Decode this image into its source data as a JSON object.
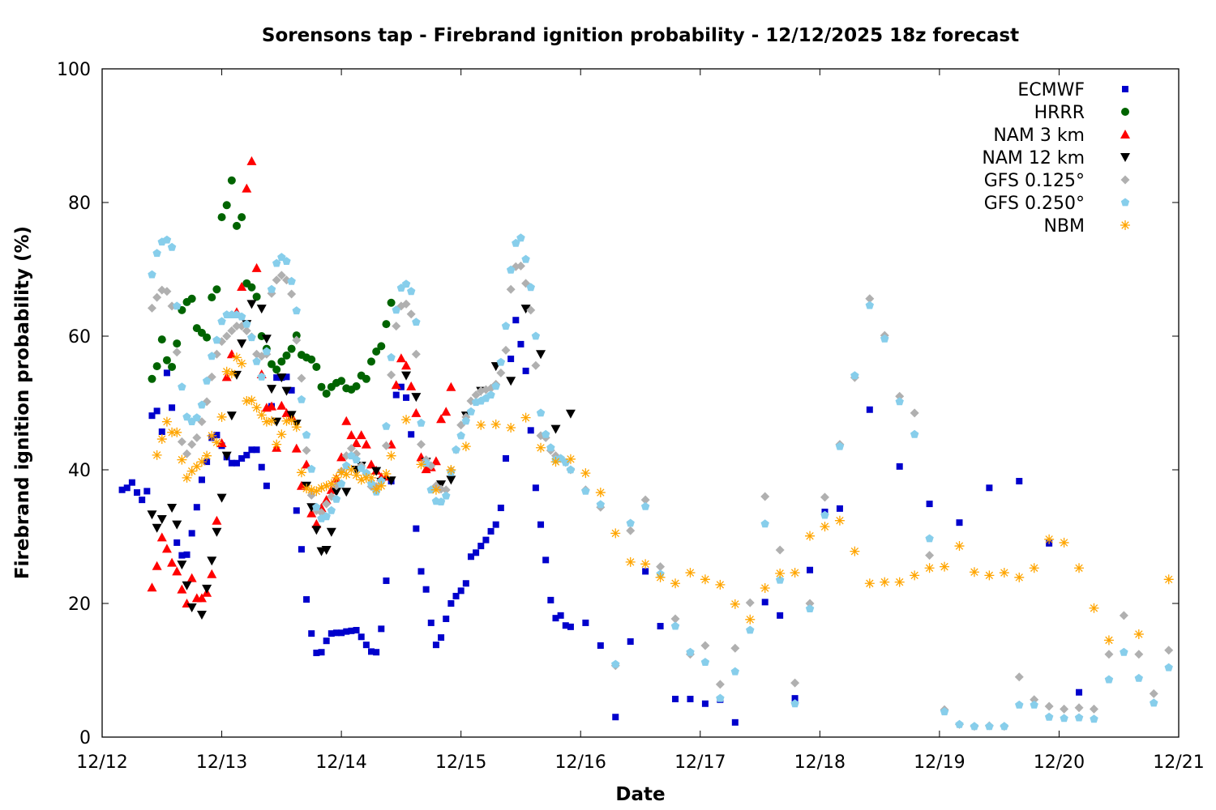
{
  "chart_data": {
    "type": "scatter",
    "title": "Sorensons tap - Firebrand ignition probability - 12/12/2025 18z forecast",
    "xlabel": "Date",
    "ylabel": "Firebrand ignition probability (%)",
    "x_units": "hours since 12/12 00z",
    "xlim": [
      0,
      216
    ],
    "ylim": [
      0,
      100
    ],
    "xticks": [
      {
        "value": 0,
        "label": "12/12"
      },
      {
        "value": 24,
        "label": "12/13"
      },
      {
        "value": 48,
        "label": "12/14"
      },
      {
        "value": 72,
        "label": "12/15"
      },
      {
        "value": 96,
        "label": "12/16"
      },
      {
        "value": 120,
        "label": "12/17"
      },
      {
        "value": 144,
        "label": "12/18"
      },
      {
        "value": 168,
        "label": "12/19"
      },
      {
        "value": 192,
        "label": "12/20"
      },
      {
        "value": 216,
        "label": "12/21"
      }
    ],
    "yticks": [
      {
        "value": 0,
        "label": "0"
      },
      {
        "value": 20,
        "label": "20"
      },
      {
        "value": 40,
        "label": "40"
      },
      {
        "value": 60,
        "label": "60"
      },
      {
        "value": 80,
        "label": "80"
      },
      {
        "value": 100,
        "label": "100"
      }
    ],
    "grid": false,
    "legend_position": "top-right",
    "series": [
      {
        "name": "ECMWF",
        "color": "#0000cc",
        "marker": "square",
        "segments": [
          {
            "start": 4,
            "step": 1,
            "values": [
              37.0,
              37.3,
              38.1,
              36.6,
              35.5,
              36.8,
              48.1,
              48.8,
              45.7,
              54.5,
              49.3,
              29.1,
              27.2,
              27.3,
              30.5,
              34.4,
              38.5,
              41.2,
              44.8,
              45.2,
              43.6,
              41.9,
              41.0,
              41.0,
              41.7,
              42.2,
              43.0,
              43.0,
              40.4,
              37.6,
              49.5,
              53.8,
              53.8,
              53.9,
              51.9,
              33.9,
              28.1,
              20.6,
              15.5,
              12.6,
              12.7,
              14.4,
              15.5,
              15.6,
              15.6,
              15.8,
              15.9,
              16.0,
              15.0,
              13.8,
              12.8,
              12.7,
              16.2,
              23.4,
              38.3,
              51.2,
              52.4,
              50.8,
              45.3,
              31.2,
              24.8,
              22.1,
              17.1,
              13.8,
              14.9,
              17.7,
              20.0,
              21.1,
              21.9,
              23.0,
              27.0,
              27.6,
              28.6,
              29.5,
              30.8,
              31.8,
              34.3,
              41.7,
              56.6,
              62.4,
              58.8,
              54.8,
              45.9,
              37.3,
              31.8,
              26.5,
              20.5,
              17.8,
              18.2,
              16.7,
              16.5
            ]
          },
          {
            "start": 97,
            "step": 3,
            "values": [
              17.1,
              13.7,
              3.0,
              14.3,
              24.8,
              16.6,
              5.7,
              5.7,
              5.0,
              5.6,
              2.2
            ]
          },
          {
            "start": 133,
            "step": 3,
            "values": [
              20.2,
              18.2,
              5.8,
              25.0,
              33.7,
              34.2
            ]
          },
          {
            "start": 154,
            "step": 6,
            "values": [
              49.0,
              40.5,
              34.9,
              32.1,
              37.3,
              38.3,
              29.0,
              6.7
            ]
          }
        ]
      },
      {
        "name": "HRRR",
        "color": "#006400",
        "marker": "circle",
        "segments": [
          {
            "start": 10,
            "step": 1,
            "values": [
              53.6,
              55.5,
              59.5,
              56.4,
              55.4,
              58.9,
              63.9,
              65.1,
              65.6,
              61.2,
              60.5,
              59.8,
              65.8,
              67.0,
              77.8,
              79.6,
              83.3,
              76.5,
              77.8,
              67.9,
              67.3,
              65.9,
              60.0,
              58.1,
              55.8,
              55.0,
              56.2,
              57.1,
              58.1,
              60.1,
              57.2,
              56.8,
              56.5,
              55.4,
              52.4,
              51.4,
              52.4,
              53.0,
              53.3,
              52.2,
              52.0,
              52.5,
              54.1,
              53.6,
              56.2,
              57.7,
              58.5,
              61.8,
              65.0
            ]
          }
        ]
      },
      {
        "name": "NAM 3 km",
        "color": "#ff0000",
        "marker": "triangle-up",
        "segments": [
          {
            "start": 10,
            "step": 1,
            "values": [
              22.4,
              25.6,
              29.9,
              28.2,
              26.1,
              24.8,
              22.1,
              20.0,
              23.8,
              20.8,
              20.8,
              21.6,
              24.4,
              32.4,
              44.0,
              53.9,
              57.3,
              63.6,
              67.4,
              82.1,
              86.2,
              70.2,
              54.3,
              49.3,
              49.5,
              43.3,
              49.6,
              48.5,
              48.0,
              43.2,
              37.6,
              40.8,
              33.5,
              31.9,
              34.3,
              35.5,
              37.0,
              38.7,
              41.9,
              47.3,
              45.2,
              44.0,
              45.2,
              43.8,
              40.8,
              39.9,
              38.9,
              39.0,
              43.8,
              52.7,
              56.7,
              55.6,
              52.5,
              48.5,
              41.9,
              40.1,
              40.4,
              41.3,
              47.6,
              48.7,
              52.4
            ]
          }
        ]
      },
      {
        "name": "NAM 12 km",
        "color": "#000000",
        "marker": "triangle-down",
        "points": [
          [
            10,
            33.3
          ],
          [
            11,
            31.3
          ],
          [
            12,
            32.6
          ],
          [
            14,
            34.3
          ],
          [
            15,
            31.8
          ],
          [
            16,
            25.8
          ],
          [
            17,
            22.7
          ],
          [
            18,
            19.4
          ],
          [
            20,
            18.3
          ],
          [
            21,
            22.2
          ],
          [
            22,
            26.4
          ],
          [
            23,
            30.7
          ],
          [
            24,
            35.8
          ],
          [
            25,
            42.1
          ],
          [
            26,
            48.1
          ],
          [
            27,
            54.2
          ],
          [
            28,
            58.9
          ],
          [
            29,
            61.8
          ],
          [
            30,
            64.8
          ],
          [
            32,
            64.1
          ],
          [
            33,
            59.6
          ],
          [
            34,
            52.1
          ],
          [
            35,
            47.2
          ],
          [
            36,
            53.8
          ],
          [
            37,
            51.8
          ],
          [
            38,
            48.2
          ],
          [
            39,
            46.9
          ],
          [
            41,
            37.6
          ],
          [
            42,
            34.4
          ],
          [
            43,
            31.0
          ],
          [
            44,
            27.8
          ],
          [
            45,
            28.0
          ],
          [
            46,
            30.7
          ],
          [
            47,
            36.7
          ],
          [
            49,
            36.7
          ],
          [
            51,
            40.0
          ],
          [
            52,
            40.6
          ],
          [
            55,
            39.8
          ],
          [
            56,
            38.2
          ],
          [
            58,
            38.4
          ],
          [
            61,
            54.1
          ],
          [
            63,
            50.9
          ],
          [
            65,
            41.2
          ],
          [
            68,
            37.8
          ],
          [
            70,
            38.5
          ],
          [
            73,
            48.1
          ],
          [
            76,
            51.8
          ],
          [
            79,
            55.5
          ],
          [
            82,
            53.3
          ],
          [
            85,
            64.1
          ],
          [
            88,
            57.3
          ],
          [
            91,
            46.1
          ],
          [
            94,
            48.4
          ]
        ]
      },
      {
        "name": "GFS 0.125°",
        "color": "#b0b0b0",
        "marker": "diamond",
        "segments": [
          {
            "start": 10,
            "step": 1,
            "values": [
              64.2,
              65.8,
              66.9,
              66.7,
              64.5,
              57.6,
              44.2,
              42.4,
              43.8,
              44.8,
              47.2,
              50.2,
              53.9,
              57.3,
              59.2,
              60.0,
              60.8,
              61.5,
              61.5,
              60.8,
              59.9,
              57.3,
              57.0,
              57.3,
              66.4,
              68.4,
              69.1,
              68.4,
              66.3,
              59.4,
              53.7,
              42.9,
              36.2,
              33.9,
              33.6,
              34.9,
              36.0,
              37.6,
              39.8,
              42.1,
              43.2,
              42.4,
              40.6,
              39.4,
              37.5,
              37.5,
              38.4,
              43.6,
              54.2,
              61.5,
              64.5,
              64.8,
              63.3,
              57.3,
              43.8,
              41.5,
              40.6,
              37.6,
              37.1,
              37.0,
              39.9,
              43.0,
              46.7,
              47.9,
              50.3,
              51.2,
              51.8,
              52.0,
              52.2,
              52.8,
              54.5,
              57.9,
              67.0,
              70.4,
              70.5,
              67.9,
              63.9,
              55.6,
              45.1,
              44.8,
              42.9,
              42.1,
              41.7,
              41.1,
              40.0
            ]
          },
          {
            "start": 97,
            "step": 3,
            "values": [
              37.0,
              34.4,
              10.7,
              30.9,
              35.5,
              25.5,
              17.7,
              12.4,
              13.7,
              7.9,
              13.3,
              20.1,
              36.0,
              28.0,
              8.1,
              20.0,
              35.9,
              43.8,
              53.8,
              65.6,
              60.1,
              51.0,
              48.5,
              27.2,
              4.1,
              1.9,
              1.6,
              1.7,
              1.6,
              9.0,
              5.6,
              4.6,
              4.2,
              4.4,
              4.2,
              12.4,
              18.2,
              12.4,
              6.5,
              13.0
            ]
          }
        ]
      },
      {
        "name": "GFS 0.250°",
        "color": "#87ceeb",
        "marker": "pentagon",
        "segments": [
          {
            "start": 10,
            "step": 1,
            "values": [
              69.2,
              72.4,
              74.1,
              74.4,
              73.3,
              64.5,
              52.4,
              47.9,
              47.2,
              47.8,
              49.7,
              53.3,
              57.0,
              59.4,
              62.2,
              63.2,
              63.2,
              63.2,
              62.9,
              61.8,
              59.8,
              56.2,
              53.9,
              57.7,
              67.0,
              70.9,
              71.8,
              71.2,
              68.2,
              63.8,
              50.5,
              45.2,
              40.1,
              34.4,
              32.7,
              33.0,
              33.9,
              35.6,
              37.9,
              40.6,
              42.1,
              41.5,
              40.2,
              39.5,
              37.9,
              36.7,
              38.3,
              46.5,
              56.8,
              63.9,
              67.2,
              67.8,
              66.7,
              62.1,
              47.0,
              41.0,
              37.0,
              35.3,
              35.2,
              36.1,
              39.6,
              43.0,
              45.1,
              47.3,
              48.7,
              50.1,
              50.3,
              50.7,
              51.2,
              52.5,
              56.1,
              61.5,
              69.9,
              73.9,
              74.7,
              71.5,
              67.3,
              60.0,
              48.5,
              45.3,
              43.3,
              41.5,
              41.7,
              41.1,
              40.0
            ]
          },
          {
            "start": 97,
            "step": 3,
            "values": [
              36.8,
              34.8,
              10.9,
              32.0,
              34.5,
              24.4,
              16.6,
              12.7,
              11.2,
              5.8,
              9.8,
              16.0,
              31.9,
              23.5,
              5.0,
              19.2,
              33.2,
              43.5,
              54.1,
              64.6,
              59.6,
              50.2,
              45.3,
              29.7,
              3.8,
              1.9,
              1.6,
              1.6,
              1.6,
              4.8,
              4.8,
              3.0,
              2.8,
              2.9,
              2.7,
              8.6,
              12.7,
              8.8,
              5.1,
              10.4
            ]
          }
        ]
      },
      {
        "name": "NBM",
        "color": "#ffa500",
        "marker": "star",
        "segments": [
          {
            "start": 11,
            "step": 1,
            "values": [
              42.2,
              44.6,
              47.2,
              45.6,
              45.6,
              41.5,
              38.8,
              39.8,
              40.5,
              41.2,
              42.1,
              45.1,
              44.1,
              47.9,
              54.7,
              54.4,
              56.8,
              55.9,
              50.3,
              50.4,
              49.3,
              48.2,
              47.2,
              47.3,
              43.8,
              45.3,
              47.3,
              47.4,
              46.4,
              39.6,
              37.2,
              37.0,
              36.8,
              37.3,
              37.6,
              37.9,
              38.8,
              39.6,
              39.3,
              40.0,
              39.2,
              38.5,
              38.8,
              38.8,
              37.1,
              37.6,
              39.4,
              42.1
            ]
          },
          {
            "start": 61,
            "step": 3,
            "values": [
              47.5,
              40.8,
              37.0,
              40.0,
              43.5,
              46.7,
              46.8,
              46.3,
              47.8,
              43.3,
              41.2,
              41.6,
              39.5,
              36.6,
              30.5,
              26.2,
              25.9,
              23.9,
              23.0,
              24.6,
              23.6,
              22.8,
              19.9,
              17.6,
              22.3,
              24.5,
              24.6,
              30.1,
              31.5,
              32.4,
              27.8,
              23.0,
              23.2,
              23.2,
              24.2,
              25.3,
              25.5,
              28.6,
              24.7,
              24.2,
              24.6,
              23.9,
              25.3,
              29.6,
              29.1,
              25.3,
              19.3,
              14.5
            ]
          },
          {
            "start": 208,
            "step": 6,
            "values": [
              15.4,
              23.6
            ]
          }
        ]
      }
    ]
  }
}
